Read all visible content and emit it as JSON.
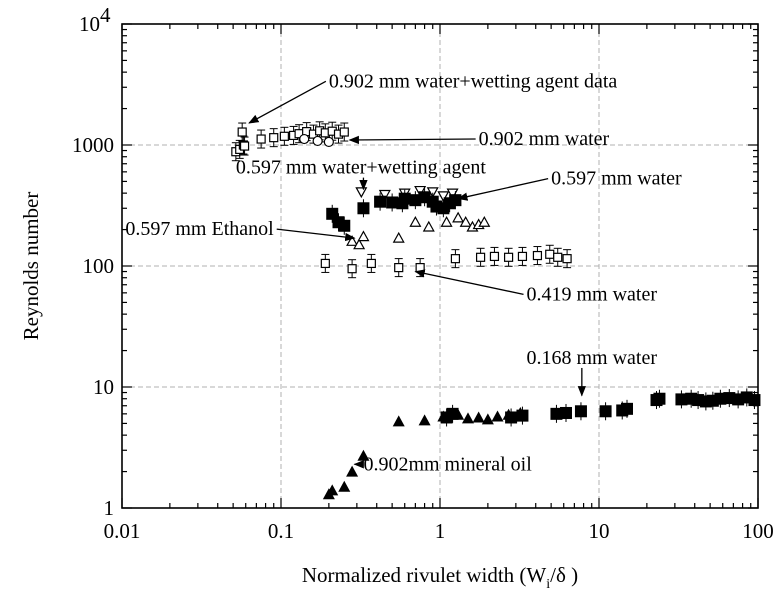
{
  "chart_data": {
    "type": "scatter",
    "xlabel": "Normalized rivulet width (W",
    "xlabel_sub": "i",
    "xlabel_end": "/δ )",
    "ylabel": "Reynolds number",
    "x_scale": "log",
    "y_scale": "log",
    "xlim": [
      0.01,
      100
    ],
    "ylim": [
      1,
      10000
    ],
    "grid": true,
    "x_ticks": [
      {
        "value": 0.01,
        "label": "0.01"
      },
      {
        "value": 0.1,
        "label": "0.1"
      },
      {
        "value": 1,
        "label": "1"
      },
      {
        "value": 10,
        "label": "10"
      },
      {
        "value": 100,
        "label": "100"
      }
    ],
    "y_ticks": [
      {
        "value": 1,
        "label": "1"
      },
      {
        "value": 10,
        "label": "10"
      },
      {
        "value": 100,
        "label": "100"
      },
      {
        "value": 1000,
        "label": "1000"
      },
      {
        "value": 10000,
        "label": "10",
        "exponent": "4"
      }
    ],
    "series": [
      {
        "marker": "open-square-errorbar",
        "points": [
          [
            0.052,
            880
          ],
          [
            0.055,
            920
          ],
          [
            0.057,
            1280
          ],
          [
            0.058,
            1000
          ],
          [
            0.059,
            980
          ],
          [
            0.075,
            1120
          ],
          [
            0.09,
            1150
          ],
          [
            0.105,
            1180
          ],
          [
            0.12,
            1200
          ],
          [
            0.13,
            1240
          ],
          [
            0.145,
            1290
          ],
          [
            0.16,
            1230
          ],
          [
            0.175,
            1310
          ],
          [
            0.19,
            1260
          ],
          [
            0.21,
            1300
          ],
          [
            0.23,
            1230
          ],
          [
            0.25,
            1280
          ]
        ]
      },
      {
        "marker": "open-circle",
        "points": [
          [
            0.14,
            1120
          ],
          [
            0.17,
            1080
          ],
          [
            0.2,
            1060
          ]
        ]
      },
      {
        "marker": "open-down-triangle",
        "points": [
          [
            0.32,
            410
          ],
          [
            0.45,
            390
          ],
          [
            0.6,
            400
          ],
          [
            0.75,
            420
          ],
          [
            0.9,
            410
          ],
          [
            1.05,
            380
          ],
          [
            1.2,
            400
          ]
        ]
      },
      {
        "marker": "filled-square",
        "points": [
          [
            0.21,
            270
          ],
          [
            0.23,
            230
          ],
          [
            0.25,
            215
          ],
          [
            0.33,
            300
          ],
          [
            0.42,
            340
          ],
          [
            0.5,
            335
          ],
          [
            0.6,
            360
          ],
          [
            0.7,
            350
          ],
          [
            0.8,
            370
          ],
          [
            0.95,
            310
          ],
          [
            1.05,
            300
          ],
          [
            1.15,
            330
          ],
          [
            1.25,
            350
          ],
          [
            0.9,
            340
          ],
          [
            0.58,
            330
          ]
        ]
      },
      {
        "marker": "open-triangle",
        "points": [
          [
            0.28,
            160
          ],
          [
            0.31,
            150
          ],
          [
            0.33,
            175
          ],
          [
            0.55,
            170
          ],
          [
            0.7,
            230
          ],
          [
            0.85,
            210
          ],
          [
            1.1,
            230
          ],
          [
            1.3,
            250
          ],
          [
            1.45,
            230
          ],
          [
            1.6,
            210
          ],
          [
            1.75,
            220
          ],
          [
            1.9,
            230
          ]
        ]
      },
      {
        "marker": "open-square-errorbar",
        "points": [
          [
            0.19,
            105
          ],
          [
            0.28,
            95
          ],
          [
            0.37,
            105
          ],
          [
            0.55,
            97
          ],
          [
            0.75,
            97
          ],
          [
            1.25,
            115
          ],
          [
            1.8,
            118
          ],
          [
            2.2,
            120
          ],
          [
            2.7,
            118
          ],
          [
            3.3,
            120
          ],
          [
            4.1,
            122
          ],
          [
            4.9,
            125
          ],
          [
            5.5,
            118
          ],
          [
            6.3,
            115
          ]
        ]
      },
      {
        "marker": "filled-triangle",
        "points": [
          [
            0.2,
            1.3
          ],
          [
            0.21,
            1.4
          ],
          [
            0.25,
            1.5
          ],
          [
            0.28,
            2.0
          ],
          [
            0.33,
            2.7
          ],
          [
            0.55,
            5.2
          ],
          [
            0.8,
            5.3
          ],
          [
            1.05,
            5.7
          ],
          [
            1.3,
            5.9
          ],
          [
            1.5,
            5.5
          ],
          [
            1.75,
            5.6
          ],
          [
            2.0,
            5.4
          ],
          [
            2.3,
            5.7
          ],
          [
            2.7,
            5.9
          ],
          [
            3.2,
            6.1
          ]
        ]
      },
      {
        "marker": "filled-square",
        "points": [
          [
            1.1,
            5.6
          ],
          [
            1.2,
            6.0
          ],
          [
            2.8,
            5.6
          ],
          [
            3.3,
            5.8
          ],
          [
            5.4,
            6.0
          ],
          [
            6.2,
            6.1
          ],
          [
            7.7,
            6.3
          ],
          [
            11,
            6.3
          ],
          [
            14,
            6.4
          ],
          [
            15,
            6.6
          ],
          [
            23,
            7.8
          ],
          [
            24,
            8.0
          ],
          [
            33,
            7.9
          ],
          [
            38,
            8.0
          ],
          [
            42,
            7.8
          ],
          [
            47,
            7.6
          ],
          [
            52,
            7.7
          ],
          [
            58,
            8.0
          ],
          [
            66,
            8.1
          ],
          [
            75,
            7.9
          ],
          [
            85,
            8.2
          ],
          [
            95,
            7.8
          ]
        ]
      }
    ],
    "annotations": [
      {
        "text": "0.902 mm water+wetting agent data",
        "x": 0.2,
        "y": 3000,
        "arrow_to": [
          0.063,
          1520
        ]
      },
      {
        "text": "0.902 mm water",
        "x": 1.75,
        "y": 1000,
        "arrow_to": [
          0.27,
          1100
        ]
      },
      {
        "text": "0.597 mm water+wetting agent",
        "x": 0.052,
        "y": 580,
        "arrow_to": [
          0.33,
          430
        ]
      },
      {
        "text": "0.597 mm water",
        "x": 5.0,
        "y": 470,
        "arrow_to": [
          1.3,
          360
        ]
      },
      {
        "text": "0.597 mm Ethanol",
        "x": 0.0105,
        "y": 180,
        "arrow_to": [
          0.29,
          170
        ]
      },
      {
        "text": "0.419 mm water",
        "x": 3.5,
        "y": 52,
        "arrow_to": [
          0.7,
          90
        ]
      },
      {
        "text": "0.168 mm water",
        "x": 3.5,
        "y": 15.5,
        "arrow_to": [
          7.8,
          8.5
        ]
      },
      {
        "text": "0.902mm mineral oil",
        "x": 0.33,
        "y": 2.05,
        "arrow_to": [
          0.29,
          2.3
        ]
      }
    ]
  }
}
